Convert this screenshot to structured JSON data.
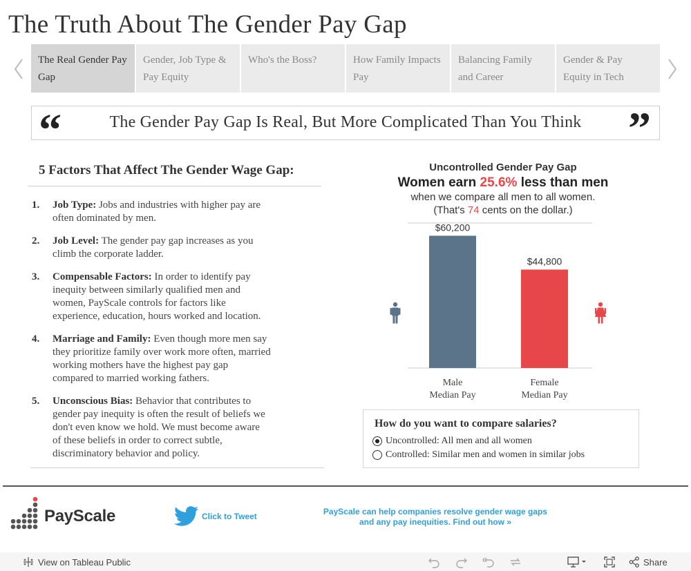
{
  "page": {
    "title": "The Truth About The Gender Pay Gap"
  },
  "nav": {
    "tabs": [
      {
        "line1": "The Real Gender Pay",
        "line2": "Gap",
        "active": true
      },
      {
        "line1": "Gender, Job Type &",
        "line2": "Pay Equity",
        "active": false
      },
      {
        "line1": "Who's the Boss?",
        "line2": "",
        "active": false
      },
      {
        "line1": "How Family Impacts",
        "line2": "Pay",
        "active": false
      },
      {
        "line1": "Balancing Family",
        "line2": "and Career",
        "active": false
      },
      {
        "line1": "Gender & Pay",
        "line2": "Equity in Tech",
        "active": false
      }
    ],
    "prev_icon": "chevron-left-icon",
    "next_icon": "chevron-right-icon"
  },
  "quote": {
    "open_mark": "“",
    "text": "The Gender Pay Gap Is Real, But More Complicated Than You Think",
    "close_mark": "”"
  },
  "factors": {
    "heading": "5 Factors That Affect The Gender Wage Gap:",
    "items": [
      {
        "num": "1.",
        "name": "Job Type:",
        "lines": [
          "Jobs and industries with higher pay are",
          "often dominated by men."
        ]
      },
      {
        "num": "2.",
        "name": "Job Level:",
        "lines": [
          "The gender pay gap increases as you",
          "climb the corporate ladder."
        ]
      },
      {
        "num": "3.",
        "name": "Compensable Factors:",
        "lines": [
          "In order to identify pay",
          "inequity between similarly qualified men and",
          "women, PayScale controls for factors like",
          "experience, education, hours worked and location."
        ]
      },
      {
        "num": "4.",
        "name": "Marriage and Family:",
        "lines": [
          "Even though more men say",
          "they prioritize family over work more often, married",
          "working mothers have the highest pay gap",
          "compared to married working fathers."
        ]
      },
      {
        "num": "5.",
        "name": "Unconscious Bias:",
        "lines": [
          "Behavior that contributes to",
          "gender pay inequity is often the result of beliefs we",
          "don't even know we hold. We must become aware",
          "of these beliefs in order to correct subtle,",
          "discriminatory behavior and policy."
        ]
      }
    ]
  },
  "chart_header": {
    "line1": "Uncontrolled Gender Pay Gap",
    "line2_pre": "Women earn ",
    "line2_pct": "25.6%",
    "line2_post": " less than men",
    "line3": "when we compare all men to all women.",
    "line4_pre": "(That's ",
    "line4_num": "74",
    "line4_post": " cents on the dollar.)"
  },
  "chart_data": {
    "type": "bar",
    "categories": [
      "Male Median Pay",
      "Female Median Pay"
    ],
    "category_lines": [
      [
        "Male",
        "Median Pay"
      ],
      [
        "Female",
        "Median Pay"
      ]
    ],
    "values": [
      60200,
      44800
    ],
    "value_labels": [
      "$60,200",
      "$44,800"
    ],
    "colors": [
      "#5b7489",
      "#e8474a"
    ],
    "ylim": [
      0,
      66000
    ],
    "grid": false,
    "legend": "none",
    "side_icons": [
      "male-figure-icon",
      "female-figure-icon"
    ]
  },
  "compare": {
    "question": "How do you want to compare salaries?",
    "options": [
      {
        "label": "Uncontrolled: All men and all women",
        "selected": true
      },
      {
        "label": "Controlled: Similar men and women in similar jobs",
        "selected": false
      }
    ]
  },
  "footer_brand": {
    "logo_text": "PayScale",
    "tweet_label": "Click to Tweet",
    "promo_line1": "PayScale can help companies resolve gender wage gaps",
    "promo_line2": "and any pay inequities. Find out how »"
  },
  "toolbar": {
    "view_label": "View on Tableau Public",
    "share_label": "Share",
    "icons": [
      "undo-icon",
      "redo-icon",
      "revert-icon",
      "refresh-icon",
      "device-preview-icon",
      "fullscreen-icon",
      "share-icon"
    ]
  },
  "colors": {
    "male": "#5b7489",
    "female": "#e8474a",
    "accent": "#2f9fde"
  }
}
